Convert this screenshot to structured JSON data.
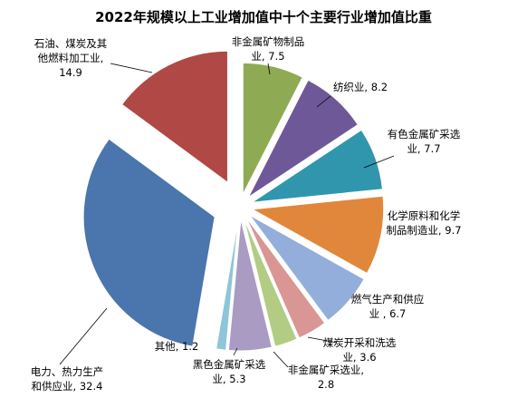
{
  "chart_data": {
    "type": "pie",
    "title": "2022年规模以上工业增加值中十个主要行业增加值比重",
    "slices": [
      {
        "name": "非金属矿物制品业",
        "value": 7.5,
        "color": "#8EAB53",
        "label_lines": [
          "非金属矿物制品",
          "业, 7.5"
        ]
      },
      {
        "name": "纺织业",
        "value": 8.2,
        "color": "#6F5897",
        "label_lines": [
          "纺织业, 8.2"
        ]
      },
      {
        "name": "有色金属矿采选业",
        "value": 7.7,
        "color": "#2F96AE",
        "label_lines": [
          "有色金属矿采选",
          "业, 7.7"
        ]
      },
      {
        "name": "化学原料和化学制品制造业",
        "value": 9.7,
        "color": "#E0873B",
        "label_lines": [
          "化学原料和化学",
          "制品制造业, 9.7"
        ]
      },
      {
        "name": "燃气生产和供应业",
        "value": 6.7,
        "color": "#93AEDA",
        "label_lines": [
          "燃气生产和供应",
          "业 , 6.7"
        ]
      },
      {
        "name": "煤炭开采和洗选业",
        "value": 3.6,
        "color": "#D99694",
        "label_lines": [
          "煤炭开采和洗选",
          "业, 3.6"
        ]
      },
      {
        "name": "非金属矿采选业",
        "value": 2.8,
        "color": "#B2CC83",
        "label_lines": [
          "非金属矿采选业,",
          "2.8"
        ]
      },
      {
        "name": "黑色金属矿采选业",
        "value": 5.3,
        "color": "#A99BC2",
        "label_lines": [
          "黑色金属矿采选",
          "业, 5.3"
        ]
      },
      {
        "name": "其他",
        "value": 1.2,
        "color": "#8CC6D8",
        "label_lines": [
          "其他, 1.2"
        ]
      },
      {
        "name": "电力、热力生产和供应业",
        "value": 32.4,
        "color": "#4A75AD",
        "label_lines": [
          "电力、热力生产",
          "和供应业, 32.4"
        ]
      },
      {
        "name": "石油、煤炭及其他燃料加工业",
        "value": 14.9,
        "color": "#B04845",
        "label_lines": [
          "石油、煤炭及其",
          "他燃料加工业,",
          "14.9"
        ]
      }
    ]
  }
}
